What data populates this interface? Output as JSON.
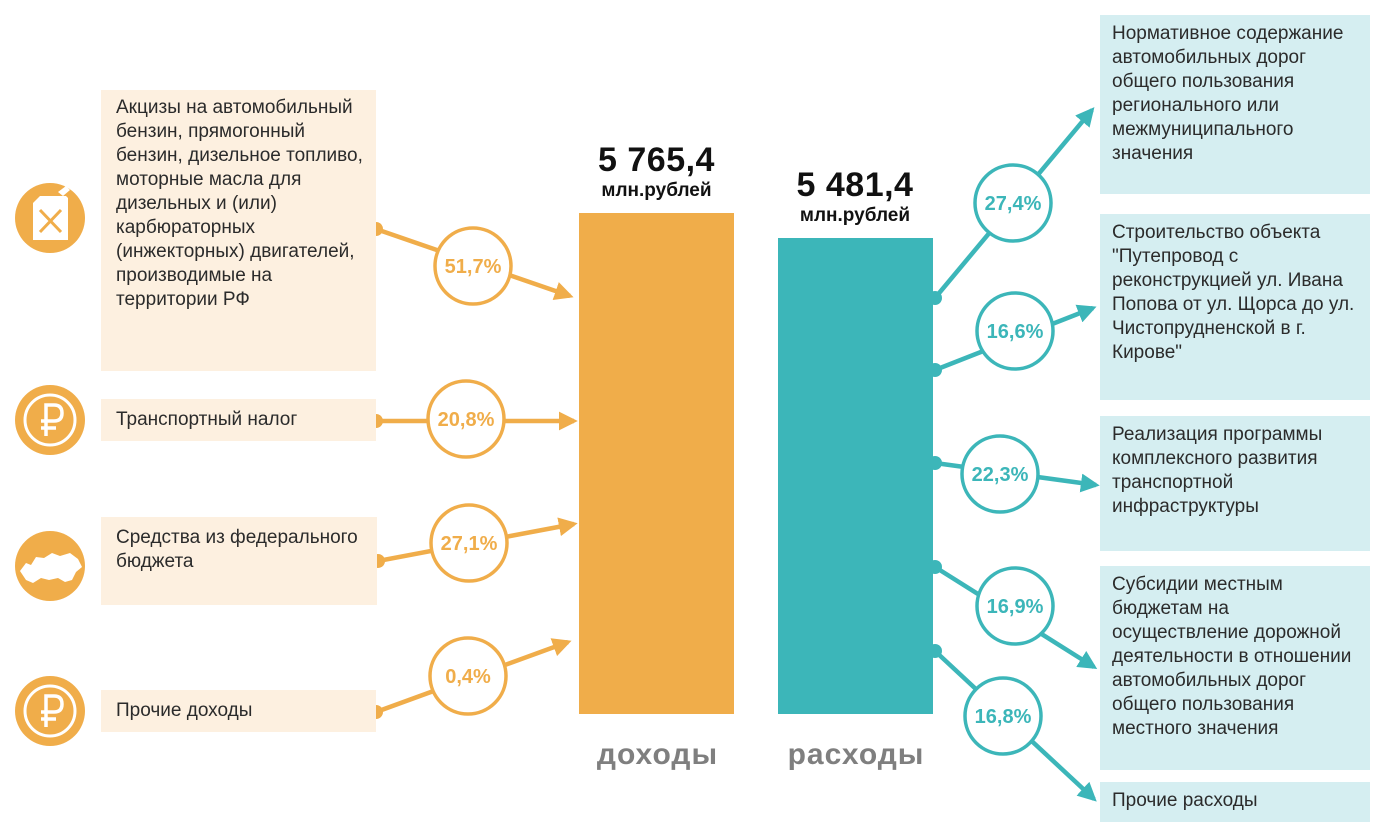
{
  "colors": {
    "income": "#f0ad4a",
    "expense": "#3cb6b9",
    "income_bg": "#fdf0e0",
    "expense_bg": "#d5eef1"
  },
  "income": {
    "total": "5 765,4",
    "unit": "млн.рублей",
    "label": "доходы",
    "items": [
      {
        "icon": "fuel-canister-icon",
        "text": "Акцизы на автомобильный бензин, прямогонный бензин, дизельное топливо, моторные масла для дизельных и (или) карбюраторных (инжекторных) двигателей, производимые на территории РФ",
        "pct": "51,7%"
      },
      {
        "icon": "ruble-coin-icon",
        "text": "Транспортный налог",
        "pct": "20,8%"
      },
      {
        "icon": "russia-map-icon",
        "text": "Средства из федерального бюджета",
        "pct": "27,1%"
      },
      {
        "icon": "ruble-coin-icon",
        "text": "Прочие доходы",
        "pct": "0,4%"
      }
    ]
  },
  "expense": {
    "total": "5 481,4",
    "unit": "млн.рублей",
    "label": "расходы",
    "items": [
      {
        "text": "Нормативное содержание автомобильных дорог общего пользования регионального или межмуниципального значения",
        "pct": "27,4%"
      },
      {
        "text": "Строительство объекта \"Путепровод с реконструкцией ул. Ивана Попова от ул. Щорса до ул. Чистопрудненской в г. Кирове\"",
        "pct": "16,6%"
      },
      {
        "text": "Реализация программы комплексного развития транспортной инфраструктуры",
        "pct": "22,3%"
      },
      {
        "text": "Субсидии местным бюджетам на осуществление дорожной деятельности в отношении автомобильных дорог общего пользования местного значения",
        "pct": "16,9%"
      },
      {
        "text": "Прочие расходы",
        "pct": "16,8%"
      }
    ]
  }
}
